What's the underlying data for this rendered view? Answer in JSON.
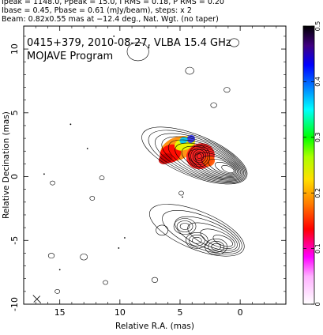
{
  "header_lines": [
    "Ipeak = 1148.0, Ppeak = 15.0, I RMS = 0.18, P RMS = 0.20",
    "Ibase = 0.45, Pbase = 0.61 (mJy/beam), steps: x 2",
    "Beam: 0.82x0.55 mas at −12.4 deg., Nat. Wgt. (no taper)"
  ],
  "chart_data": {
    "type": "image",
    "panel_title_line1": "0415+379, 2010-08-27, VLBA 15.4 GHz",
    "panel_title_line2": "MOJAVE Program",
    "xlabel": "Relative R.A. (mas)",
    "ylabel": "Relative Decination (mas)",
    "xlim": [
      18,
      -3.8
    ],
    "ylim": [
      -10,
      11.8
    ],
    "x_ticks": [
      15,
      10,
      5,
      0
    ],
    "y_ticks": [
      10,
      5,
      0,
      -5,
      -10
    ],
    "colorbar": {
      "min": 0,
      "max": 0.5,
      "ticks": [
        0,
        0.1,
        0.2,
        0.3,
        0.4,
        0.5
      ],
      "colors": [
        "#ffffff",
        "#ff00ff",
        "#ff0000",
        "#ff8800",
        "#ffff00",
        "#00ff00",
        "#00ffff",
        "#0000ff",
        "#000000"
      ]
    },
    "total_intensity_jet": {
      "core_x": 0.8,
      "core_y": 0.5,
      "end_x": 6.8,
      "end_y": 2.8,
      "knot_x": 3.4,
      "knot_y": 1.6,
      "contour_levels": 13
    },
    "polarized_intensity_jet": {
      "core_x": 1.0,
      "core_y": -5.2,
      "end_x": 6.2,
      "end_y": -3.2,
      "contour_levels": 6
    },
    "polarization_patches": [
      {
        "x": 5.2,
        "y": 2.2,
        "rx": 1.5,
        "ry": 0.9,
        "color": "#ff8a00"
      },
      {
        "x": 5.8,
        "y": 1.8,
        "rx": 0.9,
        "ry": 0.7,
        "color": "#ff0000"
      },
      {
        "x": 4.6,
        "y": 2.6,
        "rx": 0.9,
        "ry": 0.5,
        "color": "#e6ff00"
      },
      {
        "x": 4.1,
        "y": 2.95,
        "rx": 0.35,
        "ry": 0.3,
        "color": "#3030ff"
      },
      {
        "x": 4.7,
        "y": 2.85,
        "rx": 0.35,
        "ry": 0.25,
        "color": "#00c0ff"
      },
      {
        "x": 3.3,
        "y": 1.6,
        "rx": 1.2,
        "ry": 1.0,
        "color": "#ff1010"
      },
      {
        "x": 2.6,
        "y": 1.2,
        "rx": 0.5,
        "ry": 0.4,
        "color": "#ff5500"
      },
      {
        "x": 6.2,
        "y": 1.4,
        "rx": 0.6,
        "ry": 0.4,
        "color": "#cc0000"
      }
    ],
    "noise_contours": [
      {
        "x": 8.5,
        "y": 9.8,
        "r": 0.9
      },
      {
        "x": 4.2,
        "y": 8.3,
        "r": 0.35
      },
      {
        "x": 0.5,
        "y": 10.5,
        "r": 0.4
      },
      {
        "x": 2.2,
        "y": 5.6,
        "r": 0.25
      },
      {
        "x": 1.1,
        "y": 6.8,
        "r": 0.25
      },
      {
        "x": 15.6,
        "y": -0.5,
        "r": 0.2
      },
      {
        "x": 11.5,
        "y": -0.1,
        "r": 0.2
      },
      {
        "x": 12.3,
        "y": -1.7,
        "r": 0.2
      },
      {
        "x": 15.7,
        "y": -6.2,
        "r": 0.25
      },
      {
        "x": 13.0,
        "y": -6.3,
        "r": 0.3
      },
      {
        "x": 15.2,
        "y": -9.0,
        "r": 0.2
      },
      {
        "x": 7.1,
        "y": -8.1,
        "r": 0.25
      },
      {
        "x": 6.5,
        "y": -4.2,
        "r": 0.5
      },
      {
        "x": 4.9,
        "y": -1.3,
        "r": 0.2
      },
      {
        "x": 11.2,
        "y": -8.3,
        "r": 0.2
      }
    ],
    "noise_dots": [
      {
        "x": 10.5,
        "y": 11.0
      },
      {
        "x": 9.4,
        "y": 10.8
      },
      {
        "x": 8.3,
        "y": 10.5
      },
      {
        "x": 7.6,
        "y": 10.1
      },
      {
        "x": 14.1,
        "y": 4.1
      },
      {
        "x": 12.7,
        "y": 2.2
      },
      {
        "x": 16.3,
        "y": 0.2
      },
      {
        "x": 10.1,
        "y": -5.6
      },
      {
        "x": 9.6,
        "y": -4.8
      },
      {
        "x": 4.8,
        "y": -1.6
      },
      {
        "x": 15.0,
        "y": -7.3
      }
    ],
    "beam": {
      "x": 16.9,
      "y": -9.6,
      "major": 0.82,
      "minor": 0.55,
      "pa_deg": -12.4
    }
  }
}
